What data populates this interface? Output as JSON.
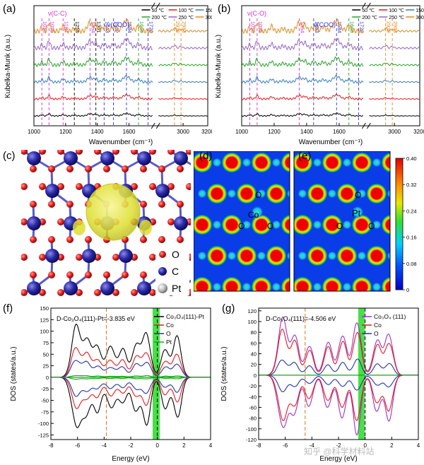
{
  "panels": {
    "a": "(a)",
    "b": "(b)",
    "c": "(c)",
    "d": "(d)",
    "e": "(e)",
    "f": "(f)",
    "g": "(g)"
  },
  "chart_data": [
    {
      "type": "line",
      "id": "a",
      "xlabel": "Wavenumber (cm⁻¹)",
      "ylabel": "Kubelka-Munk (a.u.)",
      "x_ticks": [
        1000,
        1200,
        1400,
        1600,
        3000,
        3200
      ],
      "axis_break": "after 1750",
      "legend": [
        "50 ℃",
        "100 ℃",
        "150 ℃",
        "200 ℃",
        "250 ℃",
        "300 ℃"
      ],
      "legend_colors": [
        "#000000",
        "#e41a1c",
        "#377eb8",
        "#2ca02c",
        "#9467bd",
        "#e08a1e"
      ],
      "group_labels": [
        {
          "text": "ν(C-C)",
          "color": "#cc33cc"
        },
        {
          "text": "ν(COO)",
          "color": "#3333cc"
        }
      ],
      "peaks": [
        {
          "v": 1050,
          "c": "#cc33cc"
        },
        {
          "v": 1095,
          "c": "#cc33cc"
        },
        {
          "v": 1184,
          "c": "#cc33cc"
        },
        {
          "v": 1255,
          "c": "#000000"
        },
        {
          "v": 1354,
          "c": "#cc33cc"
        },
        {
          "v": 1391,
          "c": "#000000"
        },
        {
          "v": 1443,
          "c": "#3333cc"
        },
        {
          "v": 1502,
          "c": "#3333cc"
        },
        {
          "v": 1584,
          "c": "#3333cc"
        },
        {
          "v": 1660,
          "c": "#2ca02c"
        },
        {
          "v": 1720,
          "c": "#3333cc"
        },
        {
          "v": 2930,
          "c": "#e08a1e"
        },
        {
          "v": 2983,
          "c": "#e08a1e"
        }
      ]
    },
    {
      "type": "line",
      "id": "b",
      "xlabel": "Wavenumber (cm⁻¹)",
      "ylabel": "Kubelka-Munk (a.u.)",
      "x_ticks": [
        1000,
        1200,
        1400,
        1600,
        3000,
        3200
      ],
      "axis_break": "after 1750",
      "legend": [
        "50 ℃",
        "100 ℃",
        "150 ℃",
        "200 ℃",
        "250 ℃",
        "300 ℃"
      ],
      "legend_colors": [
        "#000000",
        "#e41a1c",
        "#377eb8",
        "#2ca02c",
        "#9467bd",
        "#e08a1e"
      ],
      "group_labels": [
        {
          "text": "ν(C-O)",
          "color": "#cc33cc"
        },
        {
          "text": "ν(COO)",
          "color": "#3333cc"
        }
      ],
      "peaks": [
        {
          "v": 1050,
          "c": "#cc33cc"
        },
        {
          "v": 1095,
          "c": "#cc33cc"
        },
        {
          "v": 1354,
          "c": "#cc33cc"
        },
        {
          "v": 1443,
          "c": "#3333cc"
        },
        {
          "v": 1584,
          "c": "#3333cc"
        },
        {
          "v": 1660,
          "c": "#2ca02c"
        },
        {
          "v": 1720,
          "c": "#3333cc"
        },
        {
          "v": 2930,
          "c": "#e08a1e"
        },
        {
          "v": 2983,
          "c": "#e08a1e"
        }
      ]
    },
    {
      "type": "heatmap",
      "id": "colorbar",
      "ticks": [
        "0",
        "0.08",
        "0.16",
        "0.24",
        "0.32",
        "0.40"
      ],
      "range": [
        0,
        0.4
      ]
    },
    {
      "type": "line",
      "id": "f",
      "title": "D-Co₃O₄(111)-Pt=-3.835 eV",
      "xlabel": "Energy (eV)",
      "ylabel": "DOS (states/a.u.)",
      "x_ticks": [
        -8,
        -6,
        -4,
        -2,
        0,
        2,
        4
      ],
      "y_ticks": [
        150,
        125,
        100,
        75,
        50,
        25,
        0,
        -25,
        -50,
        -75,
        -100,
        -125
      ],
      "xlim": [
        -8,
        4
      ],
      "ylim": [
        -135,
        150
      ],
      "legend": [
        "Co₃O₄(111)-Pt",
        "Co",
        "O",
        "Pt"
      ],
      "legend_colors": [
        "#000000",
        "#e41a1c",
        "#2233aa",
        "#11aa11"
      ],
      "d_band_center": -3.835,
      "fermi_level": 0
    },
    {
      "type": "line",
      "id": "g",
      "title": "D-Co₃O₄(111)=-4.506 eV",
      "xlabel": "Energy (eV)",
      "ylabel": "DOS (states/a.u.)",
      "x_ticks": [
        -8,
        -6,
        -4,
        -2,
        0,
        2,
        4
      ],
      "y_ticks": [
        120,
        100,
        80,
        60,
        40,
        20,
        0,
        -20,
        -40,
        -60,
        -80,
        -100,
        -120
      ],
      "xlim": [
        -8,
        4
      ],
      "ylim": [
        -120,
        125
      ],
      "legend": [
        "Co₃O₄ (111)",
        "Co",
        "O"
      ],
      "legend_colors": [
        "#9933cc",
        "#e41a1c",
        "#2233aa"
      ],
      "d_band_center": -4.506,
      "fermi_level": 0
    }
  ],
  "structure_legend": [
    {
      "label": "O",
      "color": "#e02020"
    },
    {
      "label": "C",
      "color": "#2a2aa0"
    },
    {
      "label": "Pt",
      "color": "#b0b0b0"
    }
  ],
  "map_labels": {
    "d": {
      "o1": "O",
      "metal": "Co",
      "o2": "O",
      "o3": "O"
    },
    "e": {
      "o1": "O",
      "metal": "Pt",
      "o2": "O",
      "o3": "O"
    }
  },
  "watermark": "知乎 @科学材料站"
}
